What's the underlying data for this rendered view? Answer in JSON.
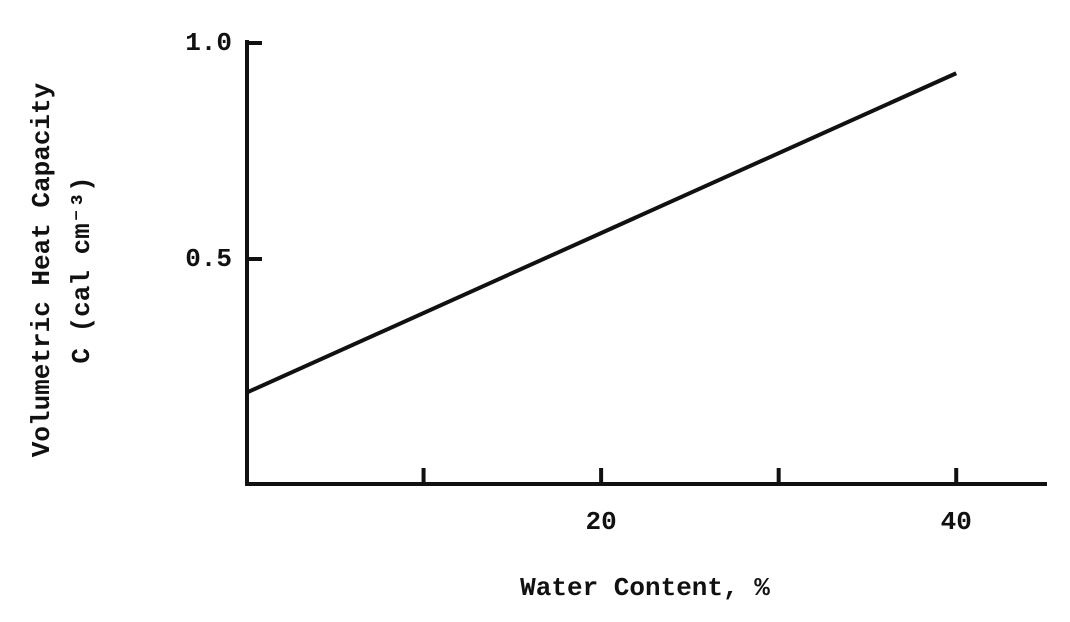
{
  "chart_data": {
    "type": "line",
    "x_label": "Water Content, %",
    "y_label": [
      "Volumetric Heat Capacity",
      "C (cal cm⁻³)"
    ],
    "x": [
      0,
      40
    ],
    "series": [
      {
        "color": "#111111",
        "values": [
          0.19,
          0.93
        ]
      }
    ],
    "xlim": [
      0,
      45
    ],
    "ylim": [
      0,
      1.0
    ],
    "xticks": [
      20,
      40
    ],
    "xminor_ticks": [
      10,
      30
    ],
    "yticks": [
      {
        "value": 0.5,
        "label": "0.5"
      },
      {
        "value": 1,
        "label": "1.0"
      }
    ],
    "grid": false
  }
}
